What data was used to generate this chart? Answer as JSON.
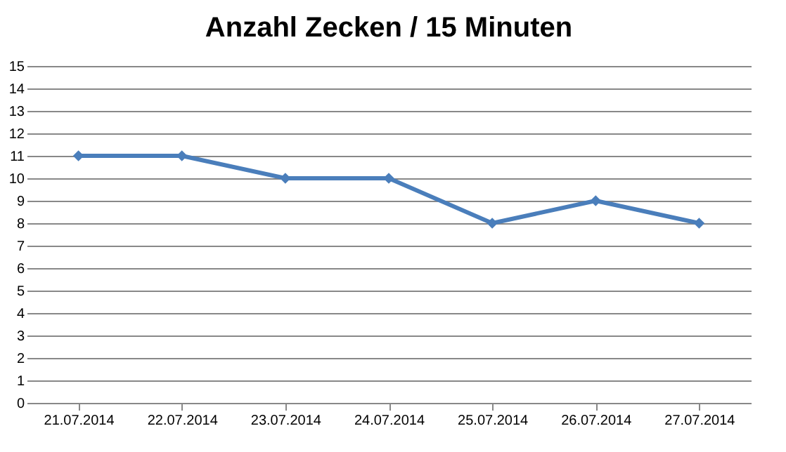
{
  "chart_data": {
    "type": "line",
    "title": "Anzahl Zecken / 15 Minuten",
    "categories": [
      "21.07.2014",
      "22.07.2014",
      "23.07.2014",
      "24.07.2014",
      "25.07.2014",
      "26.07.2014",
      "27.07.2014"
    ],
    "series": [
      {
        "color": "#4a7ebb",
        "values": [
          11,
          11,
          10,
          10,
          8,
          9,
          8
        ]
      }
    ],
    "ylim": [
      0,
      15
    ],
    "yticks": [
      0,
      1,
      2,
      3,
      4,
      5,
      6,
      7,
      8,
      9,
      10,
      11,
      12,
      13,
      14,
      15
    ],
    "grid": "y",
    "legend": false,
    "marker": "diamond",
    "line_style": "solid"
  }
}
